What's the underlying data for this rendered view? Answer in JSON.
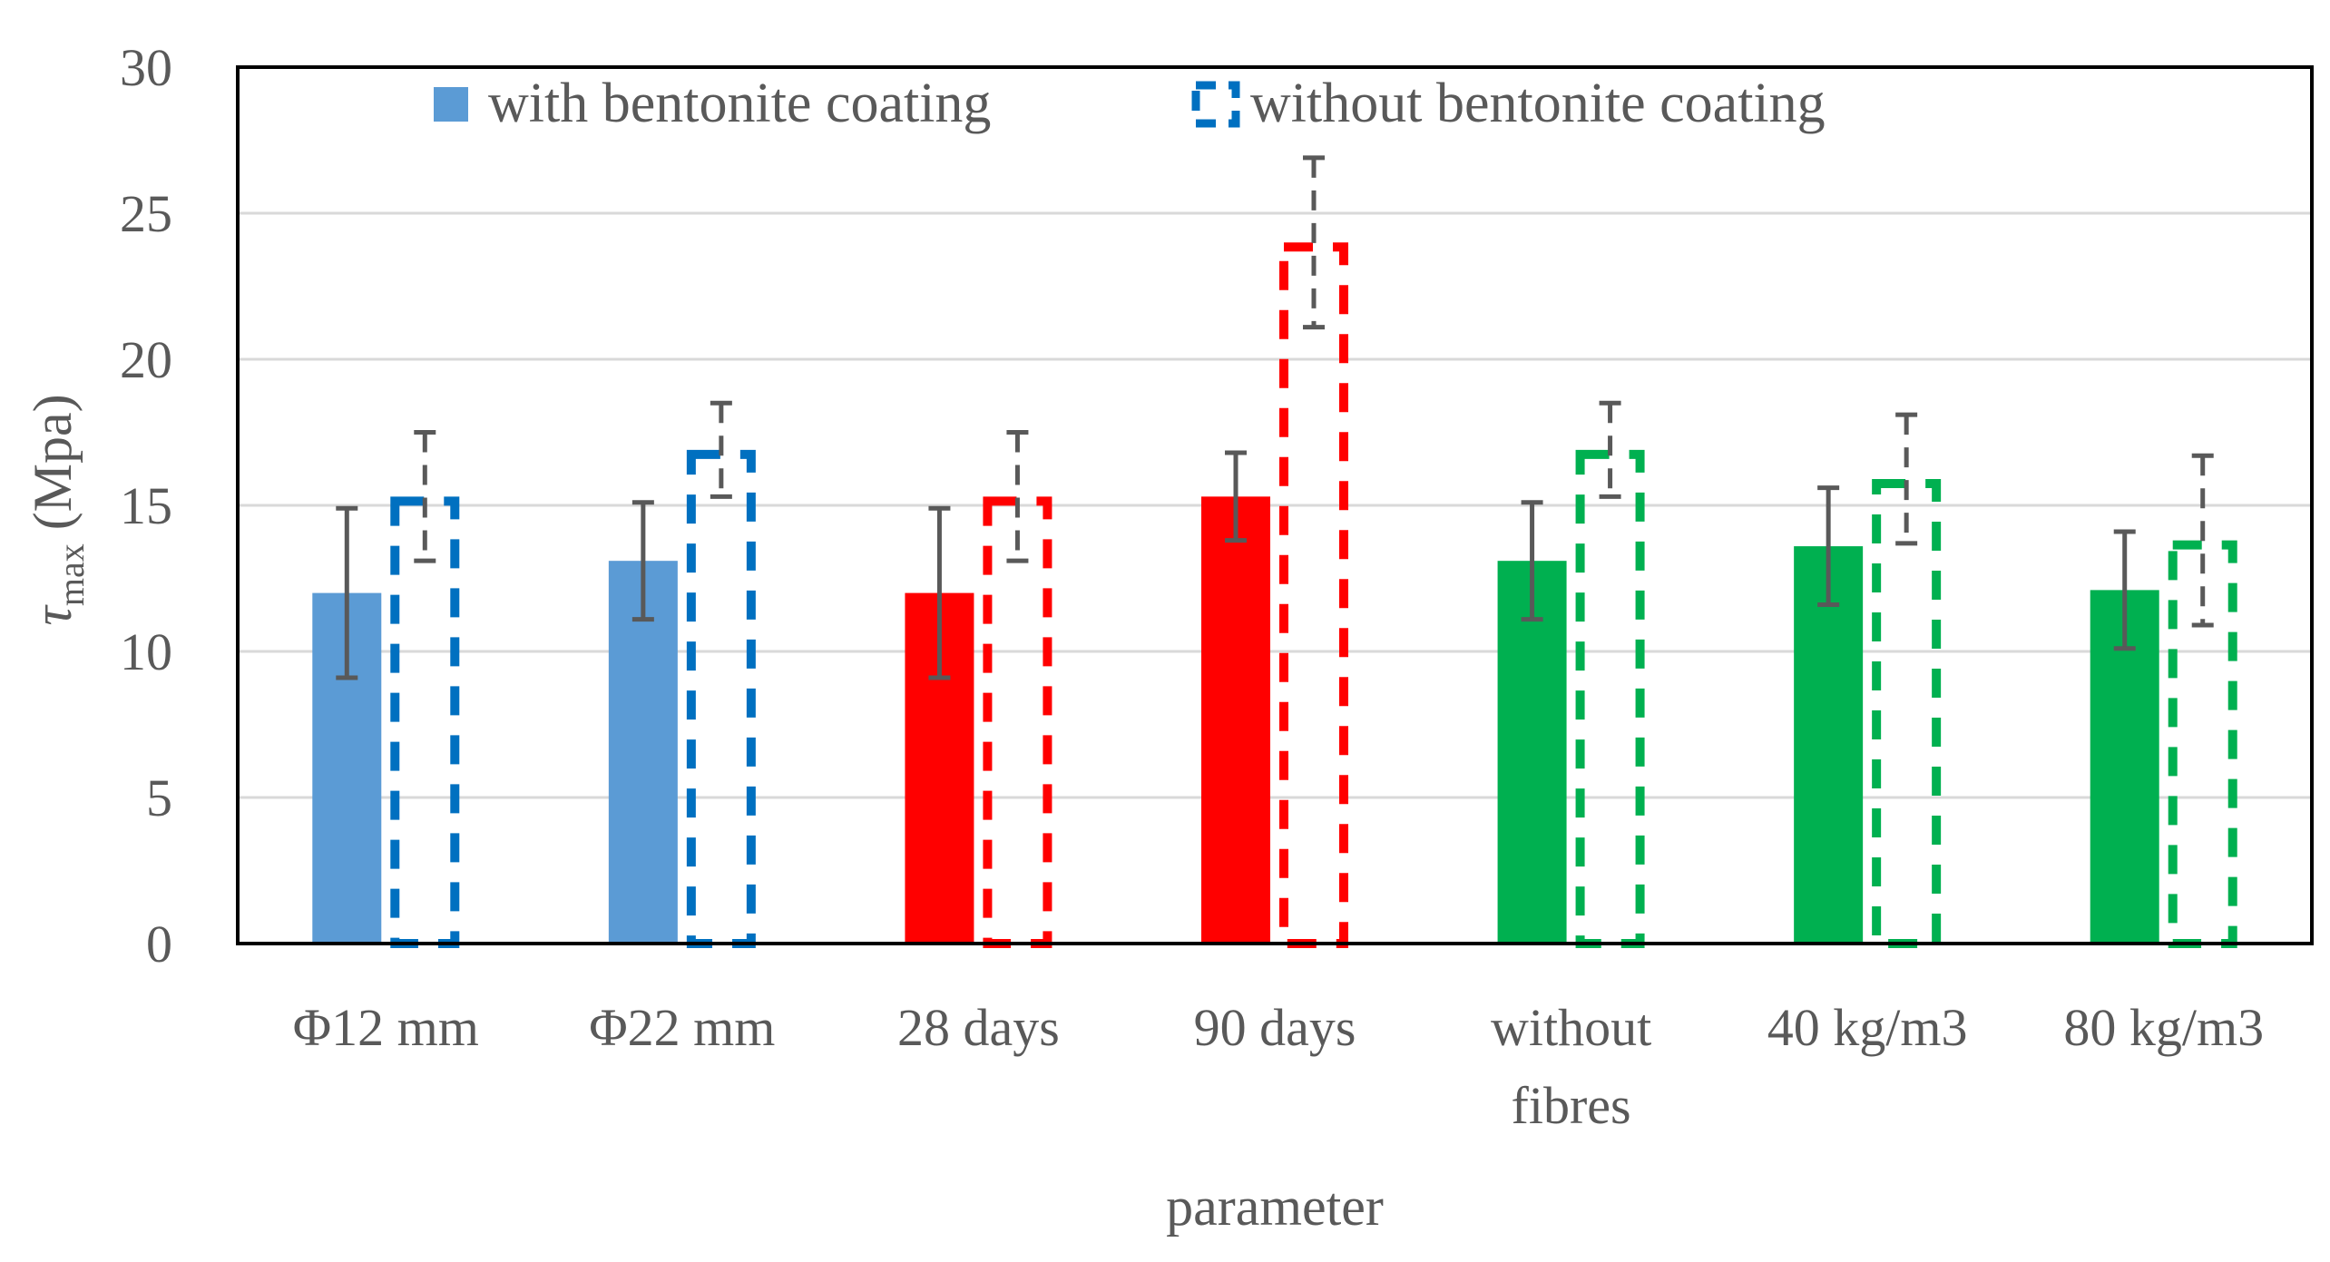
{
  "chart_data": {
    "type": "bar",
    "title": "",
    "xlabel": "parameter",
    "ylabel": {
      "symbol": "τ",
      "subscript": "max",
      "unit": " (Mpa)"
    },
    "ylim": [
      0,
      30
    ],
    "yticks": [
      0,
      5,
      10,
      15,
      20,
      25,
      30
    ],
    "grid": true,
    "legend_position": "top",
    "categories": [
      [
        "Φ12 mm"
      ],
      [
        "Φ22 mm"
      ],
      [
        "28 days"
      ],
      [
        "90 days"
      ],
      [
        "without",
        "fibres"
      ],
      [
        "40 kg/m3"
      ],
      [
        "80 kg/m3"
      ]
    ],
    "category_colors": [
      "#5B9BD5",
      "#5B9BD5",
      "#FF0000",
      "#FF0000",
      "#00B050",
      "#00B050",
      "#00B050"
    ],
    "dashed_colors": [
      "#0070C0",
      "#0070C0",
      "#FF0000",
      "#FF0000",
      "#00B050",
      "#00B050",
      "#00B050"
    ],
    "error_bar_color": "#595959",
    "series": [
      {
        "name": "with bentonite coating",
        "style": "solid",
        "legend_color": "#5B9BD5",
        "values": [
          12.0,
          13.1,
          12.0,
          15.3,
          13.1,
          13.6,
          12.1
        ],
        "errors": [
          2.9,
          2.0,
          2.9,
          1.5,
          2.0,
          2.0,
          2.0
        ]
      },
      {
        "name": "without bentonite coating",
        "style": "dashed",
        "legend_color": "#0070C0",
        "values": [
          15.3,
          16.9,
          15.3,
          24.0,
          16.9,
          15.9,
          13.8
        ],
        "errors": [
          2.2,
          1.6,
          2.2,
          2.9,
          1.6,
          2.2,
          2.9
        ]
      }
    ]
  }
}
